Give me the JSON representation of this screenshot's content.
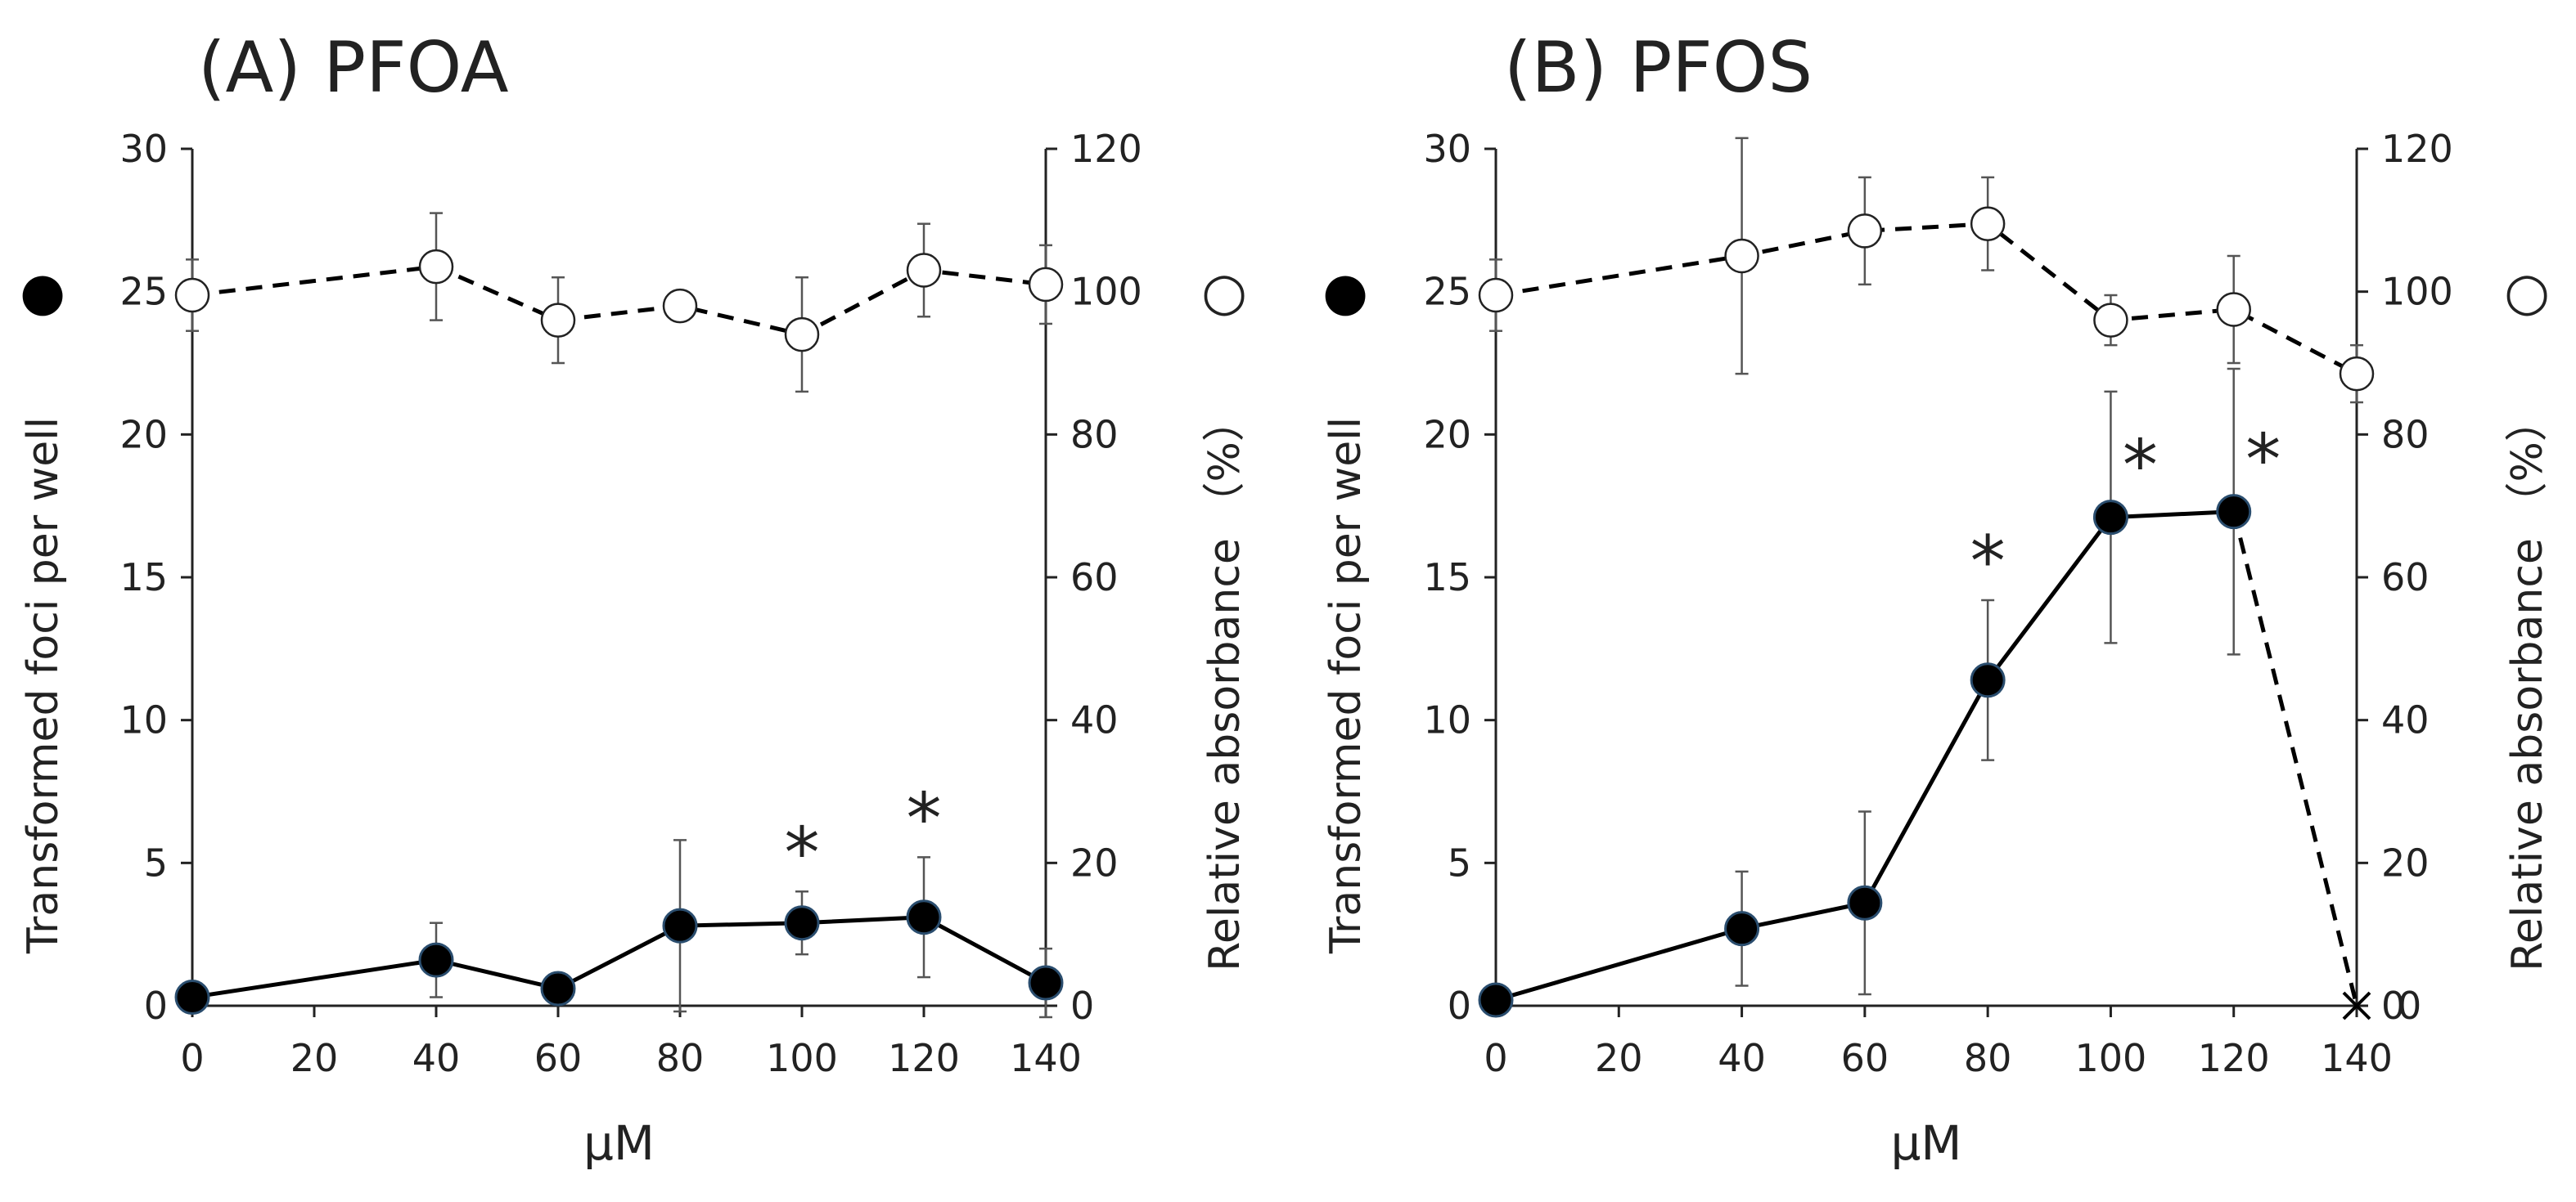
{
  "chart_data": [
    {
      "type": "line",
      "title": "(A) PFOA",
      "xlabel": "μM",
      "ylabel_left": "Transformed foci per well",
      "ylabel_right": "Relative absorbance （%）",
      "left_symbol": "●",
      "right_symbol": "○",
      "xlim": [
        0,
        140
      ],
      "ylim_left": [
        0,
        30
      ],
      "ylim_right": [
        0,
        120
      ],
      "x_ticks": [
        "0",
        "20",
        "40",
        "60",
        "80",
        "100",
        "120",
        "140"
      ],
      "y_ticks_left": [
        "0",
        "5",
        "10",
        "15",
        "20",
        "25",
        "30"
      ],
      "y_ticks_right": [
        "0",
        "20",
        "40",
        "60",
        "80",
        "100",
        "120"
      ],
      "series": [
        {
          "name": "Transformed foci per well",
          "axis": "left",
          "marker": "filled",
          "line": "solid",
          "x": [
            0,
            40,
            60,
            80,
            100,
            120,
            140
          ],
          "values": [
            0.3,
            1.6,
            0.6,
            2.8,
            2.9,
            3.1,
            0.8
          ],
          "errors": [
            0.2,
            1.3,
            0.3,
            3.0,
            1.1,
            2.1,
            1.2
          ]
        },
        {
          "name": "Relative absorbance (%)",
          "axis": "right",
          "marker": "open",
          "line": "dashed",
          "x": [
            0,
            40,
            60,
            80,
            100,
            120,
            140
          ],
          "values": [
            99.5,
            103.5,
            96.0,
            98.0,
            94.0,
            103.0,
            101.0
          ],
          "errors": [
            5.0,
            7.5,
            6.0,
            0,
            8.0,
            6.5,
            5.5
          ]
        }
      ],
      "significance": [
        {
          "x": 100,
          "label": "*"
        },
        {
          "x": 120,
          "label": "*"
        }
      ]
    },
    {
      "type": "line",
      "title": "(B) PFOS",
      "xlabel": "μM",
      "ylabel_left": "Transformed foci per well",
      "ylabel_right": "Relative absorbance （%）",
      "left_symbol": "●",
      "right_symbol": "○",
      "xlim": [
        0,
        140
      ],
      "ylim_left": [
        0,
        30
      ],
      "ylim_right": [
        0,
        120
      ],
      "x_ticks": [
        "0",
        "20",
        "40",
        "60",
        "80",
        "100",
        "120",
        "140"
      ],
      "y_ticks_left": [
        "0",
        "5",
        "10",
        "15",
        "20",
        "25",
        "30"
      ],
      "y_ticks_right": [
        "0",
        "20",
        "40",
        "60",
        "80",
        "100",
        "120"
      ],
      "extra_right_tick": "0",
      "series": [
        {
          "name": "Transformed foci per well",
          "axis": "left",
          "marker": "filled",
          "line": "solid",
          "x": [
            0,
            40,
            60,
            80,
            100,
            120
          ],
          "values": [
            0.2,
            2.7,
            3.6,
            11.4,
            17.1,
            17.3
          ],
          "errors": [
            0.2,
            2.0,
            3.2,
            2.8,
            4.4,
            5.0
          ],
          "end_line": {
            "x": 140,
            "value": 0,
            "marker": "x",
            "line": "dashed"
          }
        },
        {
          "name": "Relative absorbance (%)",
          "axis": "right",
          "marker": "open",
          "line": "dashed",
          "x": [
            0,
            40,
            60,
            80,
            100,
            120,
            140
          ],
          "values": [
            99.5,
            105.0,
            108.5,
            109.5,
            96.0,
            97.5,
            88.5
          ],
          "errors": [
            5.0,
            16.5,
            7.5,
            6.5,
            3.5,
            7.5,
            4.0
          ]
        }
      ],
      "significance": [
        {
          "x": 80,
          "label": "*"
        },
        {
          "x": 100,
          "label": "*"
        },
        {
          "x": 120,
          "label": "*"
        }
      ]
    }
  ]
}
